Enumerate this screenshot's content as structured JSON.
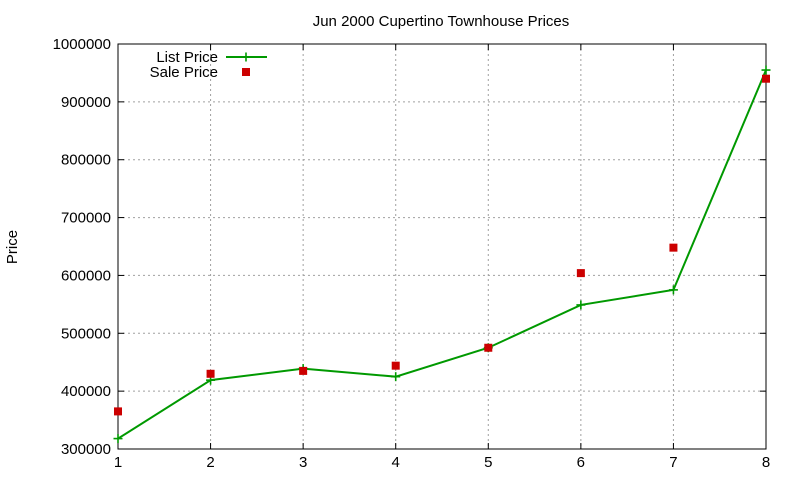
{
  "chart_data": {
    "type": "line",
    "title": "Jun 2000 Cupertino Townhouse Prices",
    "xlabel": "",
    "ylabel": "Price",
    "xlim": [
      1,
      8
    ],
    "ylim": [
      300000,
      1000000
    ],
    "xticks": [
      "1",
      "2",
      "3",
      "4",
      "5",
      "6",
      "7",
      "8"
    ],
    "yticks": [
      "300000",
      "400000",
      "500000",
      "600000",
      "700000",
      "800000",
      "900000",
      "1000000"
    ],
    "grid": true,
    "legend_position": "top-left",
    "series": [
      {
        "name": "List Price",
        "style": "lines+points",
        "marker": "plus",
        "color": "#009900",
        "x": [
          1,
          2,
          3,
          4,
          5,
          6,
          7,
          8
        ],
        "y": [
          318000,
          419000,
          439000,
          425000,
          475000,
          549000,
          575000,
          955000
        ]
      },
      {
        "name": "Sale Price",
        "style": "points",
        "marker": "square",
        "color": "#cc0000",
        "x": [
          1,
          2,
          3,
          4,
          5,
          6,
          7,
          8
        ],
        "y": [
          365000,
          430000,
          435000,
          444000,
          475000,
          604000,
          648000,
          940000
        ]
      }
    ]
  }
}
